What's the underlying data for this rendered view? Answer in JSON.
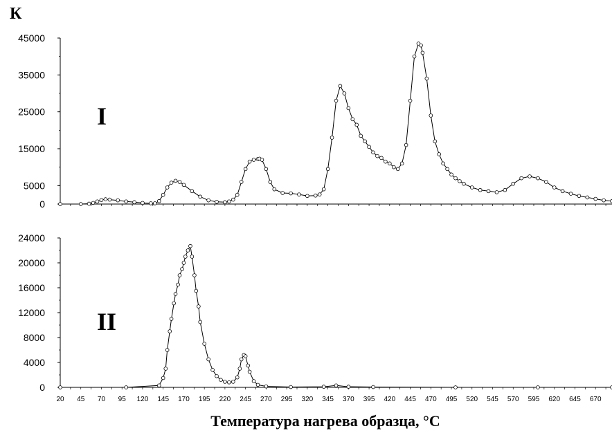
{
  "chart_data": [
    {
      "type": "line",
      "label": "I",
      "ylabel": "К",
      "ylim": [
        0,
        45000
      ],
      "xlim": [
        20,
        690
      ],
      "y_ticks": [
        "45000",
        "35000",
        "25000",
        "15000",
        "5000",
        "0"
      ],
      "y_tick_values": [
        45000,
        35000,
        25000,
        15000,
        5000,
        0
      ],
      "marker": "circle",
      "series": [
        {
          "x": [
            20,
            45,
            55,
            60,
            65,
            70,
            75,
            80,
            90,
            100,
            110,
            120,
            130,
            135,
            140,
            145,
            150,
            155,
            160,
            165,
            170,
            180,
            190,
            200,
            210,
            220,
            225,
            230,
            235,
            240,
            245,
            250,
            255,
            260,
            262,
            265,
            270,
            275,
            280,
            290,
            300,
            310,
            320,
            330,
            335,
            340,
            345,
            350,
            355,
            360,
            365,
            370,
            375,
            380,
            385,
            390,
            395,
            400,
            405,
            410,
            415,
            420,
            425,
            430,
            435,
            440,
            445,
            450,
            455,
            458,
            460,
            465,
            470,
            475,
            480,
            485,
            490,
            495,
            500,
            505,
            510,
            520,
            530,
            540,
            550,
            560,
            570,
            580,
            590,
            600,
            610,
            620,
            630,
            640,
            650,
            660,
            670,
            680,
            690
          ],
          "y": [
            0,
            0,
            100,
            300,
            700,
            1100,
            1300,
            1200,
            1000,
            700,
            500,
            300,
            200,
            200,
            800,
            2500,
            4500,
            5800,
            6300,
            6000,
            5200,
            3500,
            2000,
            1000,
            600,
            500,
            700,
            1200,
            2500,
            6000,
            9500,
            11500,
            12000,
            12200,
            12300,
            12000,
            9500,
            6000,
            4000,
            3000,
            2900,
            2600,
            2200,
            2300,
            2600,
            4000,
            9500,
            18000,
            28000,
            32000,
            30000,
            26000,
            23000,
            21500,
            18500,
            17000,
            15500,
            14000,
            13000,
            12500,
            11500,
            11000,
            10000,
            9500,
            11000,
            16000,
            28000,
            40000,
            43500,
            43000,
            41000,
            34000,
            24000,
            17000,
            13500,
            11000,
            9500,
            8000,
            7000,
            6200,
            5500,
            4500,
            3800,
            3500,
            3200,
            3800,
            5500,
            7000,
            7500,
            7000,
            6000,
            4500,
            3500,
            2800,
            2200,
            1800,
            1400,
            1000,
            800
          ]
        }
      ]
    },
    {
      "type": "line",
      "label": "II",
      "ylabel": "",
      "ylim": [
        0,
        24000
      ],
      "xlim": [
        20,
        690
      ],
      "y_ticks": [
        "24000",
        "20000",
        "16000",
        "12000",
        "8000",
        "4000",
        "0"
      ],
      "y_tick_values": [
        24000,
        20000,
        16000,
        12000,
        8000,
        4000,
        0
      ],
      "x_ticks": [
        "20",
        "45",
        "70",
        "95",
        "120",
        "145",
        "170",
        "195",
        "220",
        "245",
        "270",
        "295",
        "320",
        "345",
        "370",
        "395",
        "420",
        "445",
        "470",
        "495",
        "520",
        "545",
        "570",
        "595",
        "620",
        "645",
        "670"
      ],
      "x_tick_values": [
        20,
        45,
        70,
        95,
        120,
        145,
        170,
        195,
        220,
        245,
        270,
        295,
        320,
        345,
        370,
        395,
        420,
        445,
        470,
        495,
        520,
        545,
        570,
        595,
        620,
        645,
        670
      ],
      "xlabel": "Температура нагрева образца, °С",
      "marker": "circle",
      "series": [
        {
          "x": [
            20,
            100,
            140,
            145,
            148,
            150,
            153,
            155,
            158,
            160,
            163,
            165,
            168,
            170,
            172,
            175,
            178,
            180,
            183,
            185,
            188,
            190,
            195,
            200,
            205,
            210,
            215,
            220,
            225,
            230,
            235,
            238,
            240,
            243,
            245,
            248,
            250,
            255,
            260,
            270,
            300,
            340,
            355,
            370,
            400,
            500,
            600,
            690
          ],
          "y": [
            0,
            0,
            300,
            1500,
            3000,
            6000,
            9000,
            11000,
            13500,
            15000,
            16500,
            18000,
            19000,
            20000,
            21000,
            22000,
            22700,
            21000,
            18000,
            15500,
            13000,
            10500,
            7000,
            4500,
            2800,
            1800,
            1200,
            900,
            800,
            900,
            1600,
            3000,
            4500,
            5200,
            5000,
            3500,
            2500,
            1000,
            400,
            150,
            50,
            100,
            300,
            100,
            50,
            0,
            0,
            0
          ]
        }
      ]
    }
  ]
}
